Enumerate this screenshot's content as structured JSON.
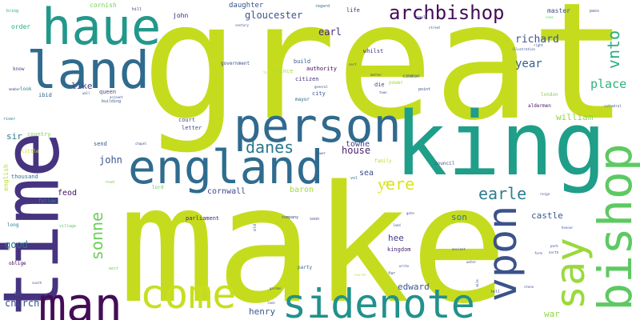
{
  "words": [
    {
      "text": "great",
      "color": "#c5dc1e"
    },
    {
      "text": "make",
      "color": "#c5dc1e"
    },
    {
      "text": "time",
      "color": "#463480"
    },
    {
      "text": "king",
      "color": "#1f9e89"
    },
    {
      "text": "land",
      "color": "#2f6b8e"
    },
    {
      "text": "haue",
      "color": "#22988b"
    },
    {
      "text": "person",
      "color": "#306a8e"
    },
    {
      "text": "england",
      "color": "#2f6c8e"
    },
    {
      "text": "bishop",
      "color": "#5ec962"
    },
    {
      "text": "say",
      "color": "#9ad93c"
    },
    {
      "text": "man",
      "color": "#440d57"
    },
    {
      "text": "come",
      "color": "#c7df1e"
    },
    {
      "text": "sidenote",
      "color": "#21918c"
    },
    {
      "text": "vpon",
      "color": "#3b528b"
    },
    {
      "text": "archbishop",
      "color": "#440d57"
    },
    {
      "text": "danes",
      "color": "#2a788e"
    },
    {
      "text": "earle",
      "color": "#2c7e8e"
    },
    {
      "text": "sonne",
      "color": "#6cce59"
    },
    {
      "text": "vnto",
      "color": "#28ae80"
    },
    {
      "text": "yͤere",
      "color": "#dce319"
    },
    {
      "text": "place",
      "color": "#2fb47c"
    },
    {
      "text": "richard",
      "color": "#3a548c"
    },
    {
      "text": "year",
      "color": "#34608d"
    },
    {
      "text": "gloucester",
      "color": "#3b528b"
    },
    {
      "text": "earl",
      "color": "#482374"
    },
    {
      "text": "william",
      "color": "#8fd744"
    },
    {
      "text": "john",
      "color": "#3a548c"
    },
    {
      "text": "house",
      "color": "#482070"
    },
    {
      "text": "castle",
      "color": "#39578c"
    },
    {
      "text": "church",
      "color": "#3b518b"
    },
    {
      "text": "son",
      "color": "#2c738e"
    },
    {
      "text": "good",
      "color": "#2b748e"
    },
    {
      "text": "edward",
      "color": "#39568c"
    },
    {
      "text": "henry",
      "color": "#38598c"
    },
    {
      "text": "baron",
      "color": "#a2da37"
    },
    {
      "text": "cornwall",
      "color": "#404688"
    },
    {
      "text": "like",
      "color": "#424186"
    },
    {
      "text": "hee",
      "color": "#433e85"
    },
    {
      "text": "sea",
      "color": "#3e4a89"
    },
    {
      "text": "towne",
      "color": "#414487"
    },
    {
      "text": "feod",
      "color": "#471063"
    },
    {
      "text": "war",
      "color": "#90d743"
    },
    {
      "text": "sir",
      "color": "#2a788e"
    },
    {
      "text": "daughter",
      "color": "#3b528b"
    },
    {
      "text": "master",
      "color": "#3b528b"
    },
    {
      "text": "cornish",
      "color": "#75d054"
    },
    {
      "text": "john",
      "color": "#482475"
    },
    {
      "text": "parliament",
      "color": "#482475"
    },
    {
      "text": "english",
      "color": "#b5de2b"
    },
    {
      "text": "thousand",
      "color": "#2c728e"
    },
    {
      "text": "ibid",
      "color": "#32658e"
    },
    {
      "text": "queen",
      "color": "#3e4a89"
    },
    {
      "text": "kingdom",
      "color": "#482475"
    },
    {
      "text": "send",
      "color": "#39568c"
    },
    {
      "text": "court",
      "color": "#3a548c"
    },
    {
      "text": "letter",
      "color": "#3e4c8a"
    },
    {
      "text": "order",
      "color": "#25ab82"
    },
    {
      "text": "country",
      "color": "#7ad151"
    },
    {
      "text": "city",
      "color": "#3b528b"
    },
    {
      "text": "citizen",
      "color": "#46327e"
    },
    {
      "text": "build",
      "color": "#38598c"
    },
    {
      "text": "authority",
      "color": "#440154"
    },
    {
      "text": "prince",
      "color": "#a8db34"
    },
    {
      "text": "government",
      "color": "#3b528b"
    },
    {
      "text": "life",
      "color": "#481f70"
    },
    {
      "text": "whilst",
      "color": "#46327e"
    },
    {
      "text": "common",
      "color": "#3b518b"
    },
    {
      "text": "die",
      "color": "#404688"
    },
    {
      "text": "power",
      "color": "#a0da39"
    },
    {
      "text": "regard",
      "color": "#2f6c8e"
    },
    {
      "text": "london",
      "color": "#84d44b"
    },
    {
      "text": "aldermen",
      "color": "#481467"
    },
    {
      "text": "mayor",
      "color": "#31688e"
    },
    {
      "text": "council",
      "color": "#3b528b"
    },
    {
      "text": "family",
      "color": "#bddf26"
    },
    {
      "text": "soon",
      "color": "#3e4a89"
    },
    {
      "text": "company",
      "color": "#404588"
    },
    {
      "text": "party",
      "color": "#2d708e"
    },
    {
      "text": "lord",
      "color": "#5ec962"
    },
    {
      "text": "road",
      "color": "#8bd646"
    },
    {
      "text": "hill",
      "color": "#482475"
    },
    {
      "text": "know",
      "color": "#414487"
    },
    {
      "text": "look",
      "color": "#25848e"
    },
    {
      "text": "long",
      "color": "#287c8e"
    },
    {
      "text": "little",
      "color": "#cae11f"
    },
    {
      "text": "follow",
      "color": "#21918c"
    },
    {
      "text": "oblige",
      "color": "#440154"
    },
    {
      "text": "day",
      "color": "#3b528b"
    },
    {
      "text": "bring",
      "color": "#22a785"
    },
    {
      "text": "river",
      "color": "#287d8e"
    },
    {
      "text": "point",
      "color": "#3b528b"
    },
    {
      "text": "vol",
      "color": "#2e6e8e"
    },
    {
      "text": "far",
      "color": "#3a548c"
    },
    {
      "text": "west",
      "color": "#7ad151"
    },
    {
      "text": "tell",
      "color": "#3b528b"
    },
    {
      "text": "old",
      "color": "#3b528b"
    },
    {
      "text": "general",
      "color": "#3b528b"
    },
    {
      "text": "paul",
      "color": "#3b528b"
    },
    {
      "text": "pass",
      "color": "#3b528b"
    },
    {
      "text": "right",
      "color": "#3b528b"
    },
    {
      "text": "century",
      "color": "#3b528b"
    },
    {
      "text": "street",
      "color": "#3b528b"
    },
    {
      "text": "tuto",
      "color": "#bddf26"
    },
    {
      "text": "case",
      "color": "#5ec962"
    },
    {
      "text": "illustration",
      "color": "#3b528b"
    },
    {
      "text": "cathedral",
      "color": "#3b528b"
    },
    {
      "text": "building",
      "color": "#3b528b"
    },
    {
      "text": "account",
      "color": "#3b528b"
    },
    {
      "text": "chapel",
      "color": "#3b528b"
    },
    {
      "text": "wall",
      "color": "#3b528b"
    },
    {
      "text": "member",
      "color": "#3b528b"
    },
    {
      "text": "town",
      "color": "#3b528b"
    },
    {
      "text": "matter",
      "color": "#3b528b"
    },
    {
      "text": "gate",
      "color": "#3b528b"
    },
    {
      "text": "reign",
      "color": "#3b528b"
    },
    {
      "text": "honour",
      "color": "#3b528b"
    },
    {
      "text": "water",
      "color": "#3b528b"
    },
    {
      "text": "form",
      "color": "#3b528b"
    },
    {
      "text": "park",
      "color": "#3b528b"
    },
    {
      "text": "north",
      "color": "#3b528b"
    },
    {
      "text": "ancient",
      "color": "#3b528b"
    },
    {
      "text": "mile",
      "color": "#3b528b"
    },
    {
      "text": "course",
      "color": "#bddf26"
    },
    {
      "text": "garden",
      "color": "#3b528b"
    },
    {
      "text": "stone",
      "color": "#3b528b"
    },
    {
      "text": "south",
      "color": "#3b528b"
    },
    {
      "text": "write",
      "color": "#3b528b"
    },
    {
      "text": "village",
      "color": "#5ec962"
    },
    {
      "text": "lane",
      "color": "#3b528b"
    },
    {
      "text": "tower",
      "color": "#3b528b"
    },
    {
      "text": "sect",
      "color": "#3b528b"
    },
    {
      "text": "land",
      "color": "#3b528b"
    }
  ]
}
